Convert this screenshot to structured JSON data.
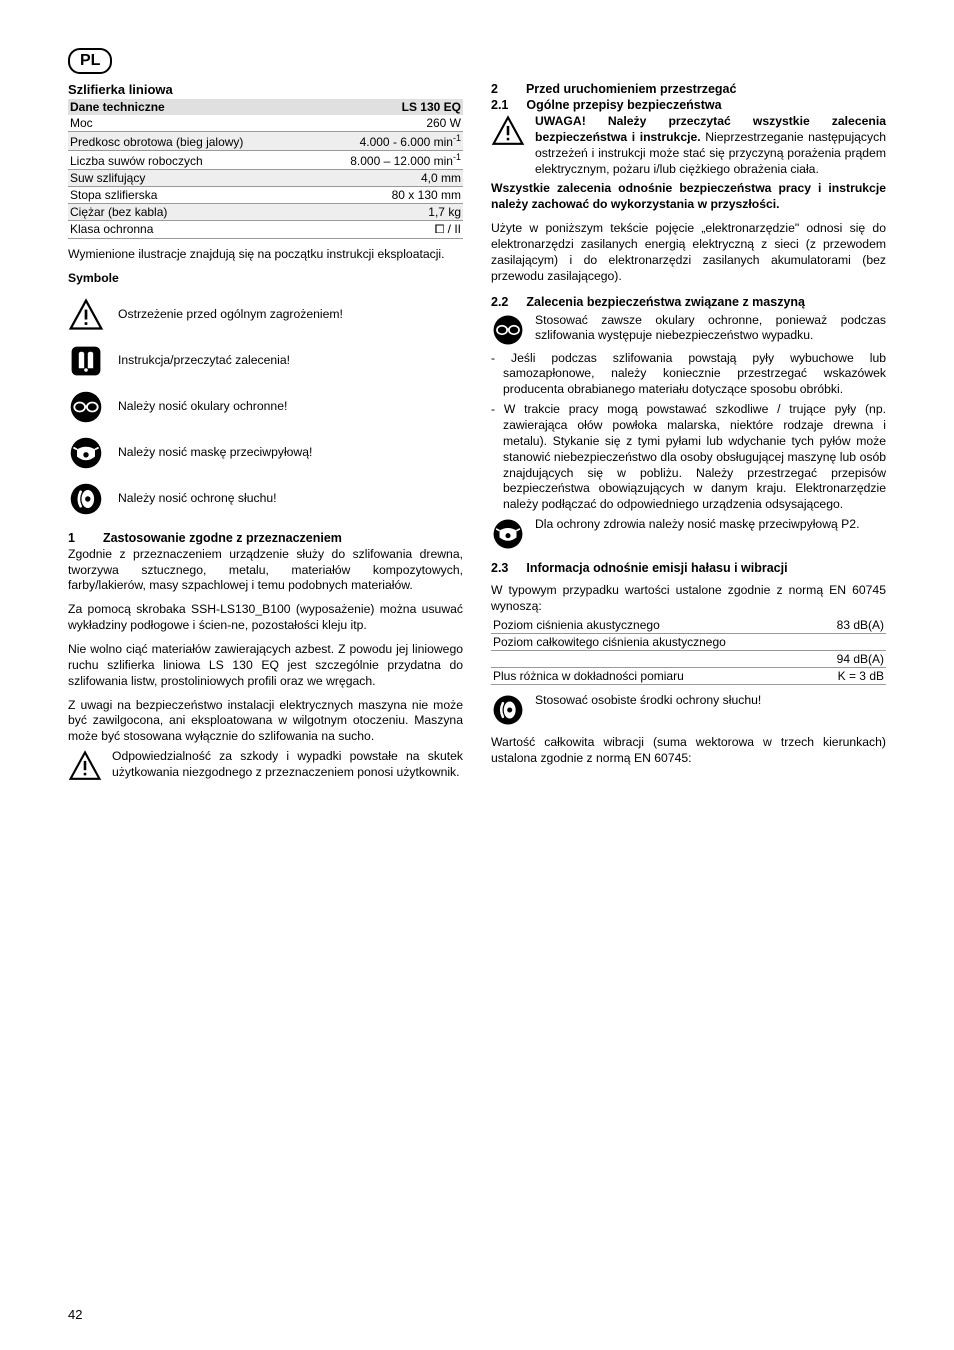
{
  "page": {
    "lang": "PL",
    "number": "42"
  },
  "product": {
    "title": "Szlifierka liniowa"
  },
  "specs": {
    "header": {
      "left": "Dane techniczne",
      "right": "LS 130 EQ"
    },
    "rows": [
      {
        "label": "Moc",
        "value": "260 W",
        "alt": false
      },
      {
        "label": "Predkosc obrotowa (bieg jalowy)",
        "value": "4.000 - 6.000 min",
        "sup": "-1",
        "alt": true
      },
      {
        "label": "Liczba suwów roboczych",
        "value": "8.000 – 12.000 min",
        "sup": "-1",
        "alt": false
      },
      {
        "label": "Suw szlifujący",
        "value": "4,0 mm",
        "alt": true
      },
      {
        "label": "Stopa szlifierska",
        "value": "80 x 130 mm",
        "alt": false
      },
      {
        "label": "Ciężar (bez kabla)",
        "value": "1,7 kg",
        "alt": true
      },
      {
        "label": "Klasa ochronna",
        "value": "⧠ / II",
        "alt": false
      }
    ]
  },
  "intro": "Wymienione ilustracje znajdują się na początku instrukcji eksploatacji.",
  "symbols": {
    "heading": "Symbole",
    "items": [
      {
        "icon": "warning",
        "text": "Ostrzeżenie przed ogólnym zagrożeniem!"
      },
      {
        "icon": "manual",
        "text": "Instrukcja/przeczytać zalecenia!"
      },
      {
        "icon": "goggles",
        "text": "Należy nosić okulary ochronne!"
      },
      {
        "icon": "mask",
        "text": "Należy nosić maskę przeciwpyłową!"
      },
      {
        "icon": "ear",
        "text": "Należy nosić ochronę słuchu!"
      }
    ]
  },
  "s1": {
    "num": "1",
    "title": "Zastosowanie zgodne z przeznaczeniem",
    "p1": "Zgodnie z przeznaczeniem urządzenie służy do szlifowania drewna, tworzywa sztucznego, metalu, materiałów kompozytowych, farby/lakierów, masy szpachlowej i temu podobnych materiałów.",
    "p2": "Za pomocą skrobaka SSH-LS130_B100 (wyposażenie) można usuwać wykładziny podłogowe i ścien-ne, pozostałości kleju itp.",
    "p3": "Nie wolno ciąć materiałów zawierających azbest. Z powodu jej liniowego ruchu szlifierka liniowa LS 130 EQ jest szczególnie przydatna do szlifowania listw, prostoliniowych profili oraz we wręgach.",
    "p4": "Z uwagi na bezpieczeństwo instalacji elektrycznych maszyna nie może być zawilgocona, ani eksploatowana w wilgotnym otoczeniu. Maszyna może być stosowana wyłącznie do szlifowania na sucho.",
    "warn": "Odpowiedzialność za szkody i wypadki powstałe na skutek użytkowania niezgodnego z przeznaczeniem ponosi użytkownik."
  },
  "s2": {
    "num": "2",
    "title": "Przed uruchomieniem przestrzegać",
    "s21": {
      "num": "2.1",
      "title": "Ogólne przepisy bezpieczeństwa",
      "warn_bold1": "UWAGA! Należy przeczytać wszystkie zalecenia bezpieczeństwa i instrukcje.",
      "warn_rest": " Nieprzestrzeganie następujących ostrzeżeń i instrukcji może stać się przyczyną porażenia prądem elektrycznym, pożaru i/lub ciężkiego obrażenia ciała.",
      "bold2": "Wszystkie zalecenia odnośnie bezpieczeństwa pracy i instrukcje należy zachować do wykorzystania w przyszłości.",
      "p2": "Użyte w poniższym tekście pojęcie „elektronarzędzie\" odnosi się do elektronarzędzi zasilanych energią elektryczną z sieci (z przewodem zasilającym) i do elektronarzędzi zasilanych akumulatorami (bez przewodu zasilającego)."
    },
    "s22": {
      "num": "2.2",
      "title": "Zalecenia bezpieczeństwa związane z maszyną",
      "goggles": "Stosować zawsze okulary ochronne, ponieważ podczas szlifowania występuje niebezpieczeństwo wypadku.",
      "li1": "Jeśli podczas szlifowania powstają pyły wybuchowe lub samozapłonowe, należy koniecznie przestrzegać wskazówek producenta obrabianego materiału dotyczące sposobu obróbki.",
      "li2": "W trakcie pracy mogą powstawać szkodliwe / trujące pyły (np. zawierająca ołów powłoka malarska, niektóre rodzaje drewna i metalu). Stykanie się z tymi pyłami lub wdychanie tych pyłów może stanowić niebezpieczeństwo dla osoby obsługującej maszynę lub osób znajdujących się w pobliżu. Należy przestrzegać przepisów bezpieczeństwa obowiązujących w danym kraju. Elektronarzędzie należy podłączać do odpowiedniego urządzenia odsysającego.",
      "mask": "Dla ochrony zdrowia należy nosić maskę przeciwpyłową P2."
    },
    "s23": {
      "num": "2.3",
      "title": "Informacja odnośnie emisji hałasu i wibracji",
      "p1": "W typowym przypadku wartości ustalone zgodnie z normą EN 60745 wynoszą:",
      "rows": [
        {
          "label": "Poziom ciśnienia akustycznego",
          "value": "83 dB(A)"
        },
        {
          "label": "Poziom całkowitego ciśnienia akustycznego",
          "value": ""
        },
        {
          "label": "",
          "value": "94 dB(A)"
        },
        {
          "label": "Plus różnica w dokładności pomiaru",
          "value": "K = 3 dB"
        }
      ],
      "ear": "Stosować osobiste środki ochrony słuchu!",
      "p2": "Wartość całkowita wibracji (suma wektorowa w trzech kierunkach) ustalona zgodnie z normą EN 60745:"
    }
  }
}
